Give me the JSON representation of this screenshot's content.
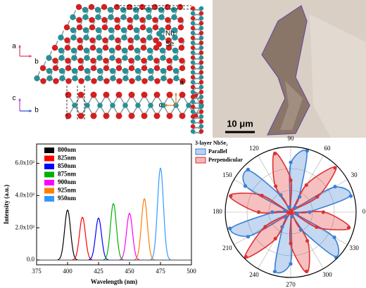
{
  "structure": {
    "legend": [
      "Nb",
      "Se"
    ],
    "axes_top": [
      "a",
      "b"
    ],
    "axes_side": [
      "c",
      "b"
    ],
    "axes_right": [
      "a",
      "c"
    ]
  },
  "micrograph": {
    "scale_bar": "10 μm"
  },
  "chart_data": [
    {
      "type": "spectra",
      "xlabel": "Wavelength (nm)",
      "ylabel": "Intensity (a.u.)",
      "xlim": [
        375,
        500
      ],
      "xticks": [
        375,
        400,
        425,
        450,
        475,
        500
      ],
      "ylim": [
        -300,
        7200
      ],
      "yticks": [
        {
          "value": 0,
          "label": "0.0"
        },
        {
          "value": 2000,
          "label": "2.0x10³"
        },
        {
          "value": 4000,
          "label": "4.0x10³"
        },
        {
          "value": 6000,
          "label": "6.0x10³"
        }
      ],
      "series": [
        {
          "name": "800nm",
          "color": "#000000",
          "x": [
            400
          ],
          "values": [
            3100
          ]
        },
        {
          "name": "825nm",
          "color": "#ff0000",
          "x": [
            412
          ],
          "values": [
            2650
          ]
        },
        {
          "name": "850nm",
          "color": "#0000ff",
          "x": [
            425
          ],
          "values": [
            2600
          ]
        },
        {
          "name": "875nm",
          "color": "#00b000",
          "x": [
            437
          ],
          "values": [
            3500
          ]
        },
        {
          "name": "900nm",
          "color": "#ff00ff",
          "x": [
            450
          ],
          "values": [
            2900
          ]
        },
        {
          "name": "925nm",
          "color": "#ff8000",
          "x": [
            462
          ],
          "values": [
            3800
          ]
        },
        {
          "name": "950nm",
          "color": "#3399ff",
          "x": [
            475
          ],
          "values": [
            5700
          ]
        }
      ]
    },
    {
      "type": "polar",
      "title": "3-layer NbSe₂",
      "theta_ticks": [
        0,
        30,
        60,
        90,
        120,
        150,
        180,
        210,
        240,
        270,
        300,
        330
      ],
      "rlim": [
        0,
        1
      ],
      "angles": [
        0,
        15,
        30,
        45,
        60,
        75,
        90,
        105,
        120,
        135,
        150,
        165,
        180,
        195,
        210,
        225,
        240,
        255,
        270,
        285,
        300,
        315,
        330,
        345
      ],
      "series": [
        {
          "name": "Parallel",
          "color": "#3a7fd5",
          "values": [
            0.27,
            0.93,
            0.76,
            0.08,
            0.25,
            0.95,
            0.74,
            0.06,
            0.28,
            0.9,
            0.78,
            0.07,
            0.26,
            0.94,
            0.73,
            0.09,
            0.24,
            0.92,
            0.77,
            0.05,
            0.29,
            0.96,
            0.75,
            0.08
          ]
        },
        {
          "name": "Perpendicular",
          "color": "#e03030",
          "values": [
            0.52,
            0.03,
            0.49,
            0.98,
            0.5,
            0.04,
            0.51,
            0.95,
            0.48,
            0.02,
            0.53,
            0.97,
            0.51,
            0.05,
            0.47,
            0.99,
            0.49,
            0.03,
            0.5,
            0.96,
            0.53,
            0.04,
            0.48,
            0.94
          ]
        }
      ]
    }
  ]
}
